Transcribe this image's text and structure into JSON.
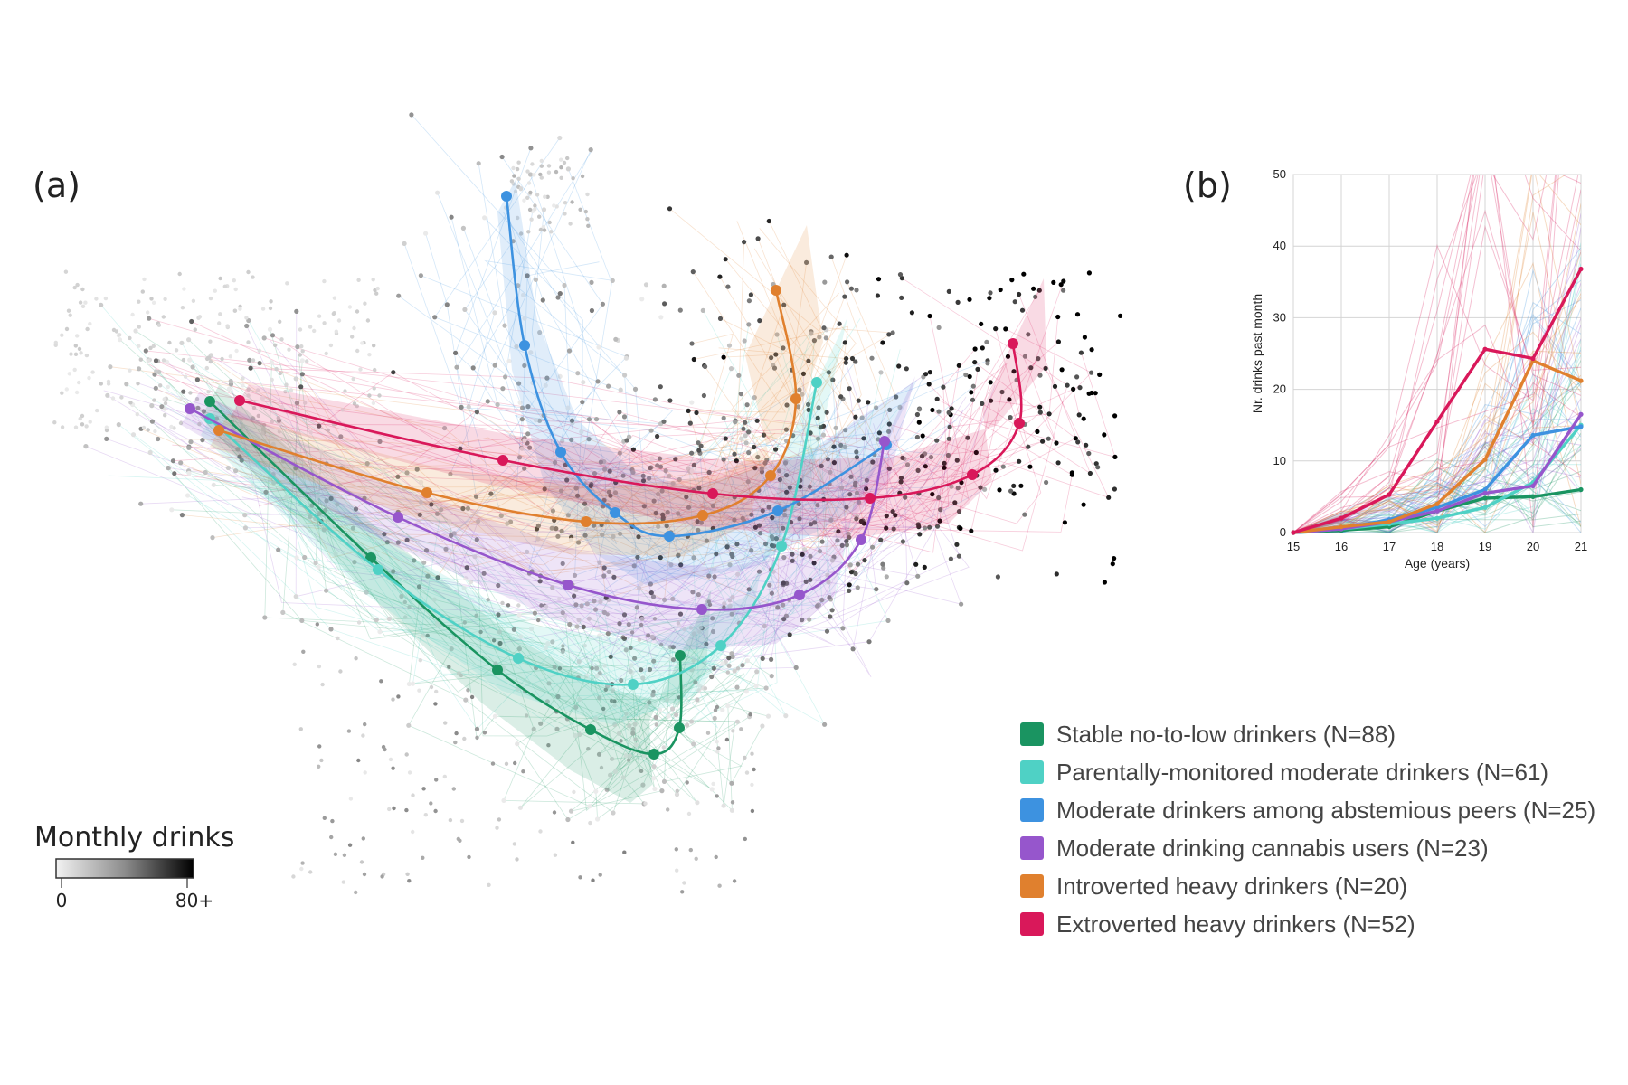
{
  "panels": {
    "a_label": "(a)",
    "b_label": "(b)"
  },
  "colorbar": {
    "title": "Monthly drinks",
    "min_label": "0",
    "max_label": "80+",
    "low_color": "#f2f2f2",
    "high_color": "#000000"
  },
  "legend": [
    {
      "label": "Stable no-to-low drinkers (N=88)",
      "color": "#1a9461"
    },
    {
      "label": "Parentally-monitored moderate drinkers (N=61)",
      "color": "#4fd1c5"
    },
    {
      "label": "Moderate drinkers among abstemious peers (N=25)",
      "color": "#3d92e0"
    },
    {
      "label": "Moderate drinking cannabis users (N=23)",
      "color": "#9656cc"
    },
    {
      "label": "Introverted heavy drinkers (N=20)",
      "color": "#e0802e"
    },
    {
      "label": "Extroverted heavy drinkers (N=52)",
      "color": "#d9185a"
    }
  ],
  "chart_data": [
    {
      "panel": "(a)",
      "type": "scatter",
      "title": "",
      "description_colorbar": "Monthly drinks",
      "series": [
        {
          "name": "Stable no-to-low drinkers (N=88)",
          "color": "#1a9461"
        },
        {
          "name": "Parentally-monitored moderate drinkers (N=61)",
          "color": "#4fd1c5"
        },
        {
          "name": "Moderate drinkers among abstemious peers (N=25)",
          "color": "#3d92e0"
        },
        {
          "name": "Moderate drinking cannabis users (N=23)",
          "color": "#9656cc"
        },
        {
          "name": "Introverted heavy drinkers (N=20)",
          "color": "#e0802e"
        },
        {
          "name": "Extroverted heavy drinkers (N=52)",
          "color": "#d9185a"
        }
      ]
    },
    {
      "panel": "(b)",
      "type": "line",
      "xlabel": "Age (years)",
      "ylabel": "Nr. drinks past month",
      "x": [
        15,
        16,
        17,
        18,
        19,
        20,
        21
      ],
      "xlim": [
        15,
        21
      ],
      "ylim": [
        0,
        50
      ],
      "yticks": [
        0,
        10,
        20,
        30,
        40,
        50
      ],
      "grid": true,
      "series": [
        {
          "name": "Stable no-to-low drinkers (N=88)",
          "color": "#1a9461",
          "values": [
            0,
            0.3,
            0.8,
            3,
            4.8,
            5,
            6
          ]
        },
        {
          "name": "Parentally-monitored moderate drinkers (N=61)",
          "color": "#4fd1c5",
          "values": [
            0,
            0.5,
            1.2,
            2,
            3.5,
            7,
            15
          ]
        },
        {
          "name": "Moderate drinkers among abstemious peers (N=25)",
          "color": "#3d92e0",
          "values": [
            0,
            0.6,
            1.8,
            3.5,
            6,
            13.6,
            14.8
          ]
        },
        {
          "name": "Moderate drinking cannabis users (N=23)",
          "color": "#9656cc",
          "values": [
            0,
            0.5,
            1.5,
            3,
            5.5,
            6.5,
            16.5
          ]
        },
        {
          "name": "Introverted heavy drinkers (N=20)",
          "color": "#e0802e",
          "values": [
            0,
            0.8,
            1.5,
            4,
            10.2,
            24,
            21.2
          ]
        },
        {
          "name": "Extroverted heavy drinkers (N=52)",
          "color": "#d9185a",
          "values": [
            0,
            2,
            5.3,
            15.5,
            25.6,
            24.3,
            36.8
          ]
        }
      ]
    }
  ]
}
